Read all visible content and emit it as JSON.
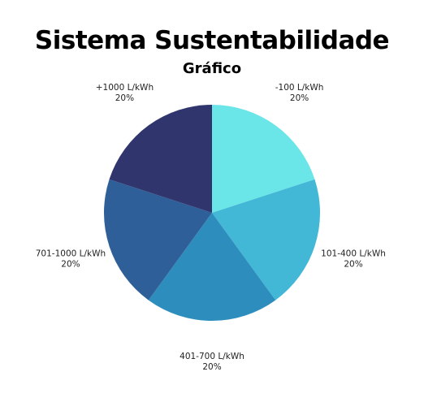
{
  "chart_data": {
    "type": "pie",
    "title": "Sistema Sustentabilidade",
    "subtitle": "Gráfico",
    "categories": [
      "-100 L/kWh",
      "101-400 L/kWh",
      "401-700 L/kWh",
      "701-1000 L/kWh",
      "+1000 L/kWh"
    ],
    "values": [
      20,
      20,
      20,
      20,
      20
    ],
    "value_labels": [
      "20%",
      "20%",
      "20%",
      "20%",
      "20%"
    ],
    "colors": [
      "#6ae5e8",
      "#42b7d6",
      "#2d8dbd",
      "#2e5f98",
      "#31356e"
    ],
    "legend": "none"
  }
}
